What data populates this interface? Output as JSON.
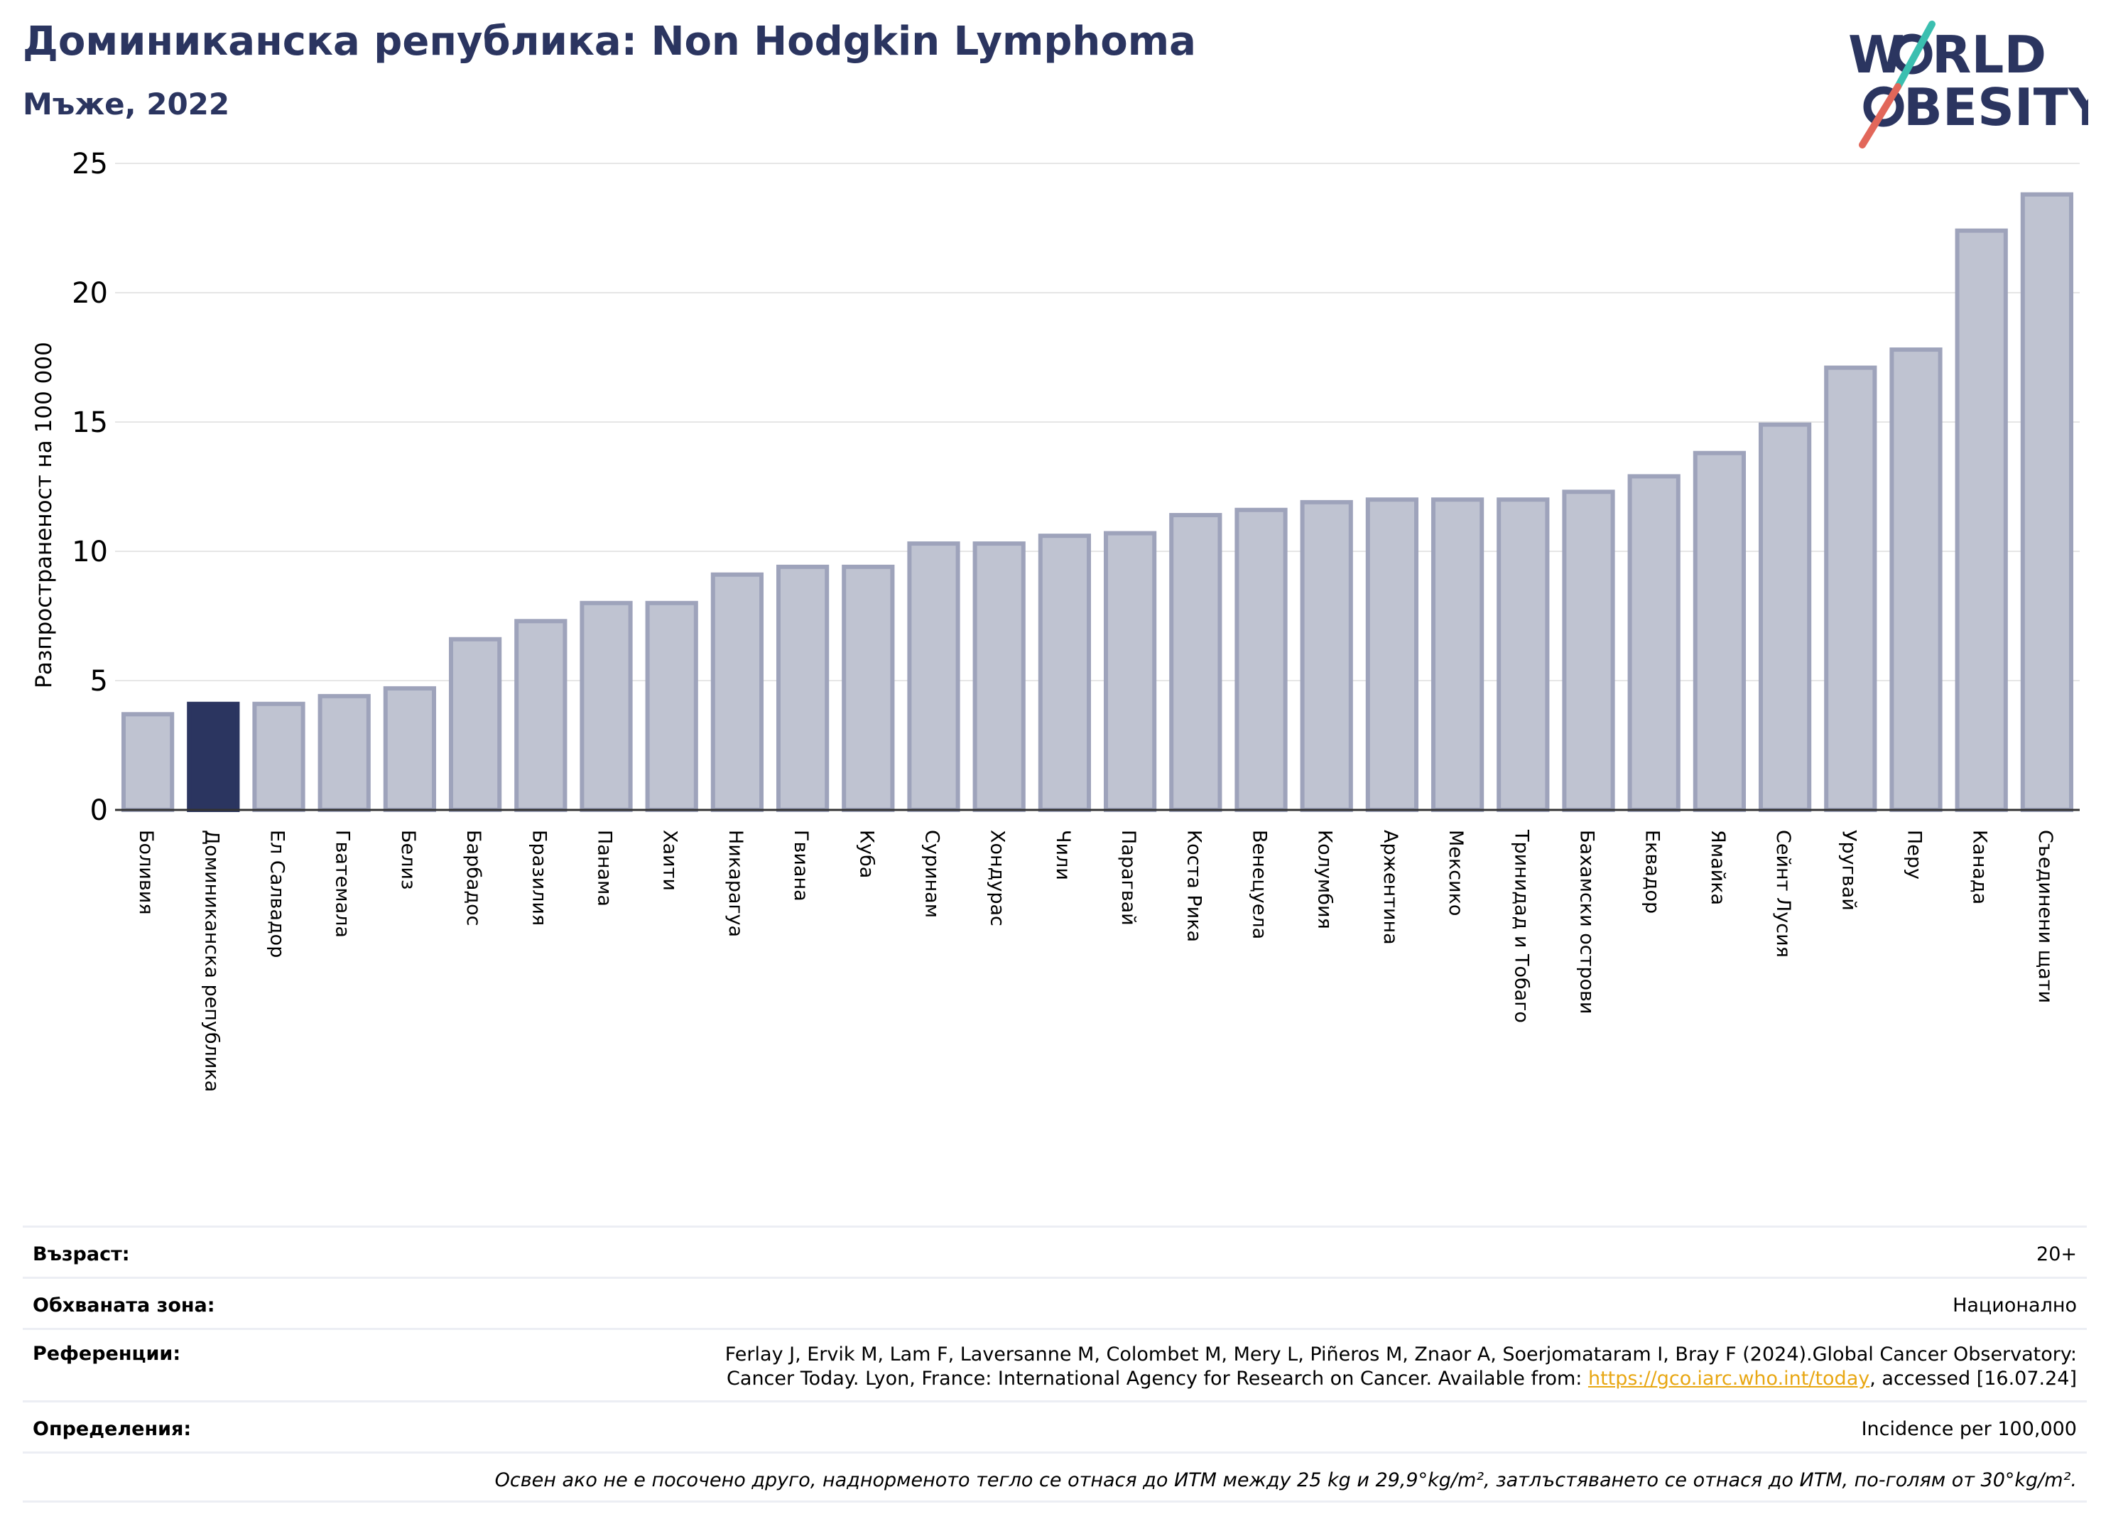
{
  "header": {
    "title": "Доминиканска република: Non Hodgkin Lymphoma",
    "subtitle": "Мъже, 2022"
  },
  "logo": {
    "line1": "W",
    "line1b": "RLD",
    "line2": "BESITY"
  },
  "colors": {
    "bar": "#bfc3d1",
    "bar_edge": "#9ea3bb",
    "highlight": "#2b3560",
    "title": "#2b3560",
    "grid": "#e6e6e6"
  },
  "chart_data": {
    "type": "bar",
    "ylabel": "Разпространеност  на 100 000",
    "ylim": [
      0,
      25
    ],
    "yticks": [
      0,
      5,
      10,
      15,
      20,
      25
    ],
    "highlight": "Доминиканска република",
    "grid": true,
    "categories": [
      "Боливия",
      "Доминиканска република",
      "Ел Салвадор",
      "Гватемала",
      "Белиз",
      "Барбадос",
      "Бразилия",
      "Панама",
      "Хаити",
      "Никарагуа",
      "Гвиана",
      "Куба",
      "Суринам",
      "Хондурас",
      "Чили",
      "Парагвай",
      "Коста Рика",
      "Венецуела",
      "Колумбия",
      "Аржентина",
      "Мексико",
      "Тринидад и Тобаго",
      "Бахамски острови",
      "Еквадор",
      "Ямайка",
      "Сейнт Лусия",
      "Уругвай",
      "Перу",
      "Канада",
      "Съединени щати"
    ],
    "values": [
      3.7,
      4.1,
      4.1,
      4.4,
      4.7,
      6.6,
      7.3,
      8.0,
      8.0,
      9.1,
      9.4,
      9.4,
      10.3,
      10.3,
      10.6,
      10.7,
      11.4,
      11.6,
      11.9,
      12.0,
      12.0,
      12.0,
      12.3,
      12.9,
      13.8,
      14.9,
      17.1,
      17.8,
      22.4,
      23.8
    ]
  },
  "info": {
    "age_label": "Възраст:",
    "age_value": "20+",
    "area_label": "Обхваната зона:",
    "area_value": "Национално",
    "ref_label": "Референции:",
    "ref_line1": "Ferlay J, Ervik M, Lam F, Laversanne M, Colombet M, Mery L, Piñeros M, Znaor A, Soerjomataram I, Bray F (2024).Global Cancer Observatory:",
    "ref_line2a": "Cancer Today. Lyon, France: International Agency for Research on Cancer. Available from: ",
    "ref_link": "https://gco.iarc.who.int/today",
    "ref_line2b": ", accessed [16.07.24]",
    "def_label": "Определения:",
    "def_value": "Incidence per 100,000",
    "note": "Освен ако не е посочено друго, наднорменото тегло се отнася до ИТМ между 25 kg и 29,9°kg/m², затлъстяването се отнася до ИТМ, по-голям от 30°kg/m²."
  }
}
